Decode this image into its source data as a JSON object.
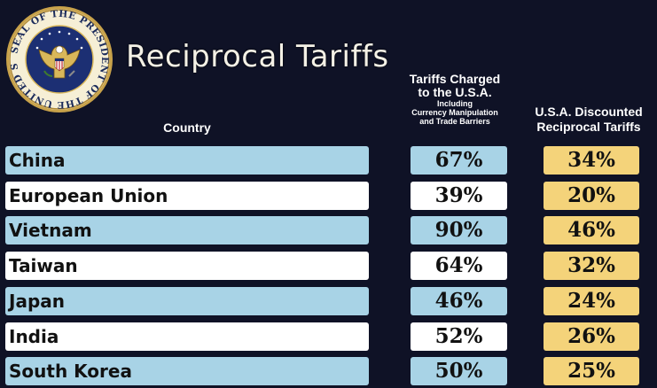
{
  "title": "Reciprocal Tariffs",
  "seal_text": "SEAL OF THE PRESIDENT OF THE UNITED STATES",
  "headers": {
    "country": "Country",
    "charged_line1": "Tariffs Charged",
    "charged_line2": "to the U.S.A.",
    "charged_sub1": "Including",
    "charged_sub2": "Currency Manipulation",
    "charged_sub3": "and Trade Barriers",
    "disc_line1": "U.S.A. Discounted",
    "disc_line2": "Reciprocal Tariffs"
  },
  "colors": {
    "background": "#0f1226",
    "blue_row": "#a8d3e6",
    "white_row": "#ffffff",
    "gold": "#f4d37a"
  },
  "chart_data": {
    "type": "table",
    "columns": [
      "Country",
      "Tariffs Charged to the U.S.A. Including Currency Manipulation and Trade Barriers",
      "U.S.A. Discounted Reciprocal Tariffs"
    ],
    "rows": [
      {
        "country": "China",
        "charged": "67%",
        "discounted": "34%"
      },
      {
        "country": "European Union",
        "charged": "39%",
        "discounted": "20%"
      },
      {
        "country": "Vietnam",
        "charged": "90%",
        "discounted": "46%"
      },
      {
        "country": "Taiwan",
        "charged": "64%",
        "discounted": "32%"
      },
      {
        "country": "Japan",
        "charged": "46%",
        "discounted": "24%"
      },
      {
        "country": "India",
        "charged": "52%",
        "discounted": "26%"
      },
      {
        "country": "South Korea",
        "charged": "50%",
        "discounted": "25%"
      }
    ]
  }
}
